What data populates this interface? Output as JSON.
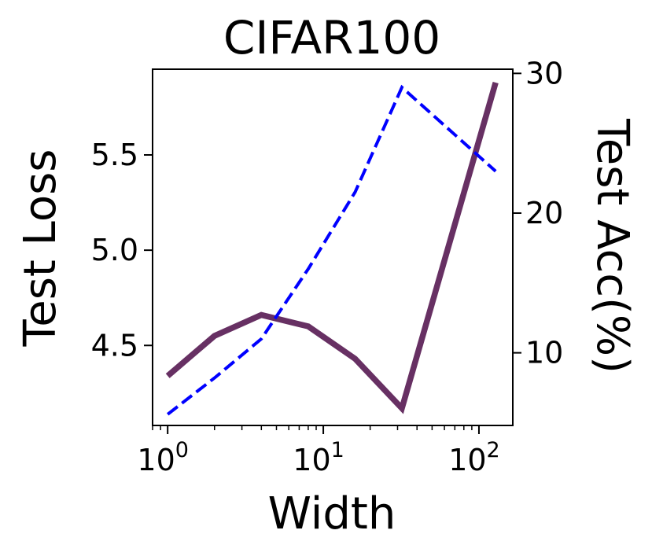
{
  "chart_data": {
    "type": "line",
    "title": "CIFAR100",
    "xlabel": "Width",
    "ylabel_left": "Test Loss",
    "ylabel_right": "Test Acc(%)",
    "xscale": "log",
    "xlim": [
      0.8,
      165
    ],
    "x_ticks": [
      {
        "value": 1,
        "base": "10",
        "exp": "0"
      },
      {
        "value": 10,
        "base": "10",
        "exp": "1"
      },
      {
        "value": 100,
        "base": "10",
        "exp": "2"
      }
    ],
    "ylim_left": [
      4.08,
      5.95
    ],
    "y_ticks_left": [
      {
        "value": 4.5,
        "label": "4.5"
      },
      {
        "value": 5.0,
        "label": "5.0"
      },
      {
        "value": 5.5,
        "label": "5.5"
      }
    ],
    "ylim_right": [
      4.8,
      30.3
    ],
    "y_ticks_right": [
      {
        "value": 10,
        "label": "10"
      },
      {
        "value": 20,
        "label": "20"
      },
      {
        "value": 30,
        "label": "30"
      }
    ],
    "grid": false,
    "legend": "none",
    "series": [
      {
        "axis": "left",
        "style": "solid",
        "color": "#673063",
        "x": [
          1,
          2,
          4,
          8,
          16,
          32,
          128
        ],
        "y": [
          4.34,
          4.55,
          4.66,
          4.6,
          4.43,
          4.17,
          5.88
        ]
      },
      {
        "axis": "right",
        "style": "dashed",
        "color": "#0000ff",
        "x": [
          1,
          2,
          4,
          8,
          16,
          32,
          128
        ],
        "y": [
          5.6,
          8.2,
          11.0,
          16.0,
          21.5,
          29.0,
          23.0
        ]
      }
    ]
  }
}
